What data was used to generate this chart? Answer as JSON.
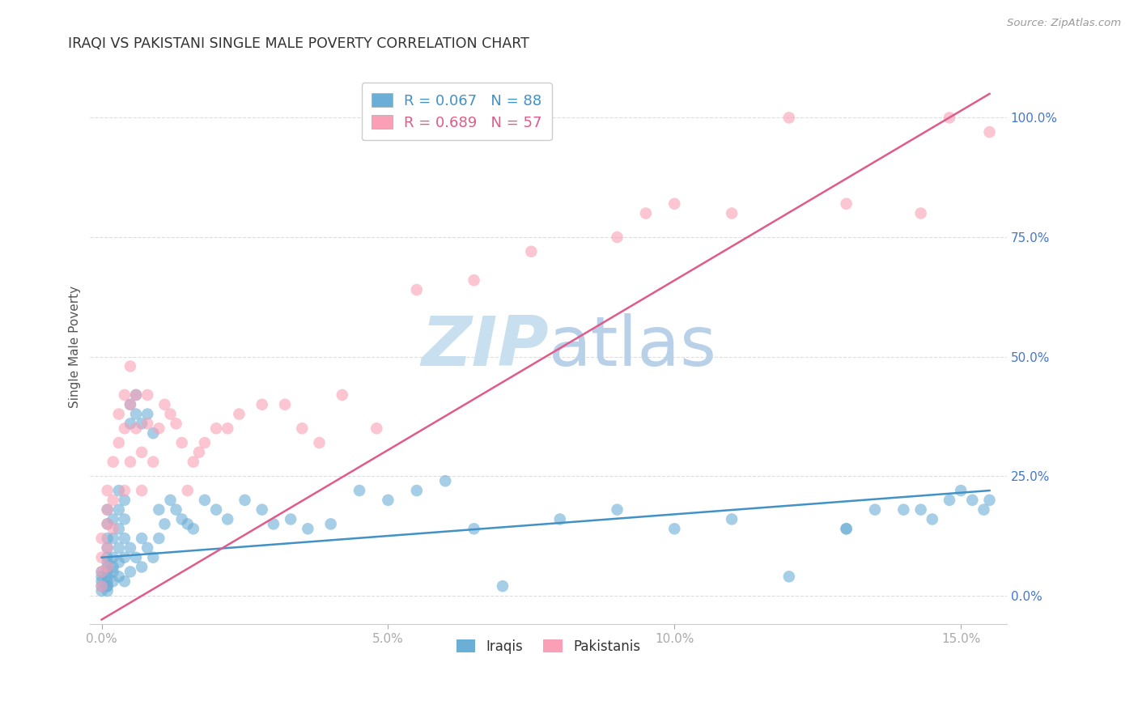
{
  "title": "IRAQI VS PAKISTANI SINGLE MALE POVERTY CORRELATION CHART",
  "source": "Source: ZipAtlas.com",
  "ylabel": "Single Male Poverty",
  "xlabel_ticks": [
    "0.0%",
    "5.0%",
    "10.0%",
    "15.0%"
  ],
  "xlabel_vals": [
    0.0,
    0.05,
    0.1,
    0.15
  ],
  "ylabel_ticks": [
    "0.0%",
    "25.0%",
    "50.0%",
    "75.0%",
    "100.0%"
  ],
  "ylabel_vals": [
    0.0,
    0.25,
    0.5,
    0.75,
    1.0
  ],
  "xlim": [
    -0.002,
    0.158
  ],
  "ylim": [
    -0.06,
    1.1
  ],
  "iraqi_R": 0.067,
  "iraqi_N": 88,
  "pakistani_R": 0.689,
  "pakistani_N": 57,
  "iraqi_color": "#6baed6",
  "pakistani_color": "#fa9fb5",
  "iraqi_line_color": "#4292c6",
  "pakistani_line_color": "#e05b8b",
  "legend_box_color": "#ffffff",
  "legend_border_color": "#cccccc",
  "watermark_zip_color": "#c8dff0",
  "watermark_atlas_color": "#b8d0e8",
  "title_color": "#333333",
  "axis_label_color": "#4477cc",
  "grid_color": "#dddddd",
  "background_color": "#ffffff",
  "iraqi_x": [
    0.0,
    0.0,
    0.0,
    0.0,
    0.0,
    0.001,
    0.001,
    0.001,
    0.001,
    0.001,
    0.001,
    0.001,
    0.001,
    0.001,
    0.001,
    0.001,
    0.001,
    0.001,
    0.002,
    0.002,
    0.002,
    0.002,
    0.002,
    0.002,
    0.003,
    0.003,
    0.003,
    0.003,
    0.003,
    0.003,
    0.004,
    0.004,
    0.004,
    0.004,
    0.004,
    0.005,
    0.005,
    0.005,
    0.005,
    0.006,
    0.006,
    0.006,
    0.007,
    0.007,
    0.007,
    0.008,
    0.008,
    0.009,
    0.009,
    0.01,
    0.01,
    0.011,
    0.012,
    0.013,
    0.014,
    0.015,
    0.016,
    0.018,
    0.02,
    0.022,
    0.025,
    0.028,
    0.03,
    0.033,
    0.036,
    0.04,
    0.045,
    0.05,
    0.055,
    0.06,
    0.065,
    0.07,
    0.08,
    0.09,
    0.1,
    0.11,
    0.12,
    0.13,
    0.14,
    0.15,
    0.152,
    0.154,
    0.148,
    0.145,
    0.143,
    0.155,
    0.13,
    0.135
  ],
  "iraqi_y": [
    0.02,
    0.03,
    0.01,
    0.05,
    0.04,
    0.02,
    0.04,
    0.06,
    0.08,
    0.03,
    0.01,
    0.05,
    0.07,
    0.1,
    0.12,
    0.15,
    0.18,
    0.02,
    0.05,
    0.08,
    0.12,
    0.16,
    0.03,
    0.06,
    0.1,
    0.14,
    0.18,
    0.22,
    0.04,
    0.07,
    0.08,
    0.12,
    0.16,
    0.2,
    0.03,
    0.36,
    0.4,
    0.1,
    0.05,
    0.38,
    0.42,
    0.08,
    0.36,
    0.12,
    0.06,
    0.38,
    0.1,
    0.34,
    0.08,
    0.18,
    0.12,
    0.15,
    0.2,
    0.18,
    0.16,
    0.15,
    0.14,
    0.2,
    0.18,
    0.16,
    0.2,
    0.18,
    0.15,
    0.16,
    0.14,
    0.15,
    0.22,
    0.2,
    0.22,
    0.24,
    0.14,
    0.02,
    0.16,
    0.18,
    0.14,
    0.16,
    0.04,
    0.14,
    0.18,
    0.22,
    0.2,
    0.18,
    0.2,
    0.16,
    0.18,
    0.2,
    0.14,
    0.18
  ],
  "pakistani_x": [
    0.0,
    0.0,
    0.0,
    0.0,
    0.001,
    0.001,
    0.001,
    0.001,
    0.001,
    0.002,
    0.002,
    0.002,
    0.003,
    0.003,
    0.004,
    0.004,
    0.004,
    0.005,
    0.005,
    0.005,
    0.006,
    0.006,
    0.007,
    0.007,
    0.008,
    0.008,
    0.009,
    0.01,
    0.011,
    0.012,
    0.013,
    0.014,
    0.015,
    0.016,
    0.017,
    0.018,
    0.02,
    0.022,
    0.024,
    0.028,
    0.032,
    0.035,
    0.038,
    0.042,
    0.048,
    0.055,
    0.065,
    0.075,
    0.09,
    0.095,
    0.1,
    0.11,
    0.12,
    0.13,
    0.143,
    0.148,
    0.155
  ],
  "pakistani_y": [
    0.02,
    0.05,
    0.08,
    0.12,
    0.06,
    0.1,
    0.15,
    0.18,
    0.22,
    0.14,
    0.2,
    0.28,
    0.32,
    0.38,
    0.22,
    0.35,
    0.42,
    0.28,
    0.4,
    0.48,
    0.35,
    0.42,
    0.22,
    0.3,
    0.36,
    0.42,
    0.28,
    0.35,
    0.4,
    0.38,
    0.36,
    0.32,
    0.22,
    0.28,
    0.3,
    0.32,
    0.35,
    0.35,
    0.38,
    0.4,
    0.4,
    0.35,
    0.32,
    0.42,
    0.35,
    0.64,
    0.66,
    0.72,
    0.75,
    0.8,
    0.82,
    0.8,
    1.0,
    0.82,
    0.8,
    1.0,
    0.97
  ],
  "iraqi_line_x": [
    0.0,
    0.155
  ],
  "iraqi_line_y": [
    0.08,
    0.22
  ],
  "pakistani_line_x": [
    0.0,
    0.155
  ],
  "pakistani_line_y": [
    -0.05,
    1.05
  ]
}
